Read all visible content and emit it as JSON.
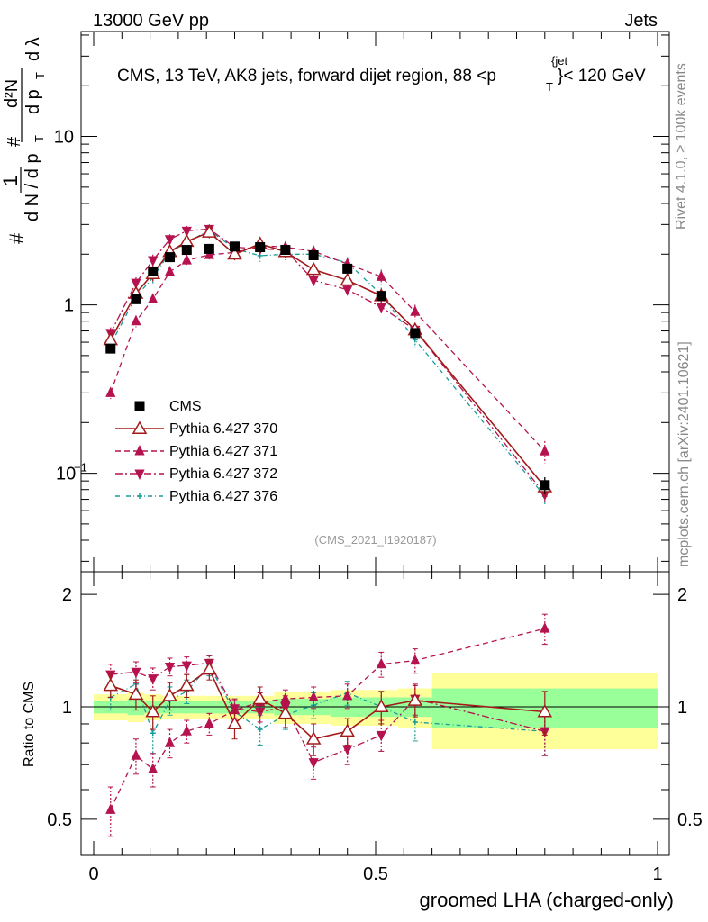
{
  "header": {
    "left": "13000 GeV pp",
    "right": "Jets"
  },
  "side_labels": {
    "rivet": "Rivet 4.1.0, ≥ 100k events",
    "mcplots": "mcplots.cern.ch [arXiv:2401.10621]"
  },
  "chart_data": {
    "type": "line",
    "title_parts": {
      "a": "CMS, 13 TeV, AK8 jets, forward dijet region, 88 <p",
      "sup": "{jet",
      "sub": "T",
      "b": "}< 120 GeV"
    },
    "watermark": "(CMS_2021_I1920187)",
    "xlabel": "groomed LHA (charged-only)",
    "ylabel": {
      "hash1": "#",
      "one": "1",
      "dN": "d N / d p",
      "T1": "T",
      "hash2": "#",
      "d2N": "d²N",
      "dpT": "d p",
      "T2": "T",
      "dlam": "d λ"
    },
    "ratio_ylabel": "Ratio to CMS",
    "xlim": [
      0,
      1
    ],
    "ylim": [
      0.026,
      42
    ],
    "ratio_ylim": [
      0.4,
      2.3
    ],
    "x_ticks": [
      "0",
      "0.5",
      "1"
    ],
    "y_ticks": [
      {
        "value": 10,
        "label": "10"
      },
      {
        "value": 1,
        "label": "1"
      },
      {
        "value": 0.1,
        "label": "10",
        "sup": "−1"
      }
    ],
    "ratio_ticks": [
      {
        "value": 2,
        "label": "2"
      },
      {
        "value": 1,
        "label": "1"
      },
      {
        "value": 0.5,
        "label": "0.5"
      }
    ],
    "bins": [
      [
        0,
        0.06
      ],
      [
        0.06,
        0.09
      ],
      [
        0.09,
        0.12
      ],
      [
        0.12,
        0.15
      ],
      [
        0.15,
        0.18
      ],
      [
        0.18,
        0.23
      ],
      [
        0.23,
        0.27
      ],
      [
        0.27,
        0.32
      ],
      [
        0.32,
        0.36
      ],
      [
        0.36,
        0.42
      ],
      [
        0.42,
        0.48
      ],
      [
        0.48,
        0.54
      ],
      [
        0.54,
        0.6
      ],
      [
        0.6,
        1.0
      ]
    ],
    "x": [
      0.03,
      0.075,
      0.105,
      0.135,
      0.165,
      0.205,
      0.25,
      0.295,
      0.34,
      0.39,
      0.45,
      0.51,
      0.57,
      0.8
    ],
    "cms": {
      "name": "CMS",
      "values": [
        0.55,
        1.08,
        1.58,
        1.92,
        2.12,
        2.15,
        2.22,
        2.2,
        2.12,
        1.97,
        1.64,
        1.13,
        0.68,
        0.085
      ],
      "band_stat": [
        0.04,
        0.05,
        0.04,
        0.04,
        0.04,
        0.04,
        0.04,
        0.04,
        0.05,
        0.05,
        0.06,
        0.06,
        0.06,
        0.12
      ],
      "band_tot": [
        0.08,
        0.09,
        0.08,
        0.07,
        0.07,
        0.07,
        0.07,
        0.07,
        0.1,
        0.1,
        0.11,
        0.11,
        0.12,
        0.23
      ]
    },
    "series": [
      {
        "name": "Pythia 6.427 370",
        "color": "#a31a1a",
        "marker": "open-triangle-up",
        "dash": "",
        "values": [
          0.62,
          1.17,
          1.53,
          2.07,
          2.38,
          2.7,
          2.0,
          2.3,
          2.07,
          1.62,
          1.4,
          1.13,
          0.71,
          0.083
        ],
        "ratio": [
          1.14,
          1.08,
          0.97,
          1.07,
          1.14,
          1.26,
          0.9,
          1.05,
          0.96,
          0.82,
          0.86,
          1.0,
          1.04,
          0.97
        ],
        "rerr": [
          0.08,
          0.1,
          0.1,
          0.09,
          0.08,
          0.08,
          0.08,
          0.08,
          0.08,
          0.08,
          0.07,
          0.1,
          0.1,
          0.13
        ]
      },
      {
        "name": "Pythia 6.427 371",
        "color": "#b5124f",
        "marker": "filled-triangle-up",
        "dash": "6,4",
        "values": [
          0.3,
          0.8,
          1.08,
          1.57,
          1.84,
          1.98,
          2.05,
          2.25,
          2.2,
          2.08,
          1.75,
          1.47,
          0.91,
          0.135
        ],
        "ratio": [
          0.53,
          0.74,
          0.68,
          0.8,
          0.86,
          0.9,
          0.98,
          1.03,
          1.05,
          1.06,
          1.07,
          1.3,
          1.33,
          1.62
        ],
        "rerr": [
          0.08,
          0.08,
          0.07,
          0.07,
          0.06,
          0.06,
          0.06,
          0.06,
          0.06,
          0.07,
          0.08,
          0.1,
          0.1,
          0.15
        ]
      },
      {
        "name": "Pythia 6.427 372",
        "color": "#b5124f",
        "marker": "filled-triangle-down",
        "dash": "8,3,2,3",
        "values": [
          0.68,
          1.35,
          1.84,
          2.45,
          2.75,
          2.82,
          2.2,
          2.15,
          2.12,
          1.4,
          1.23,
          0.97,
          0.71,
          0.075
        ],
        "ratio": [
          1.22,
          1.24,
          1.19,
          1.28,
          1.29,
          1.31,
          0.99,
          0.97,
          1.0,
          0.71,
          0.77,
          0.84,
          1.05,
          0.86
        ],
        "rerr": [
          0.08,
          0.08,
          0.08,
          0.07,
          0.07,
          0.06,
          0.06,
          0.06,
          0.07,
          0.07,
          0.07,
          0.08,
          0.1,
          0.12
        ]
      },
      {
        "name": "Pythia 6.427 376",
        "color": "#1a9c9c",
        "marker": "star",
        "dash": "5,3,1,3",
        "values": [
          0.58,
          1.12,
          1.45,
          2.05,
          2.34,
          2.78,
          2.15,
          1.96,
          2.0,
          2.0,
          1.78,
          1.15,
          0.62,
          0.073
        ],
        "ratio": [
          1.06,
          1.15,
          0.85,
          1.04,
          1.1,
          1.29,
          0.97,
          0.87,
          0.95,
          1.01,
          1.09,
          1.0,
          0.91,
          0.86
        ],
        "rerr": [
          0.08,
          0.1,
          0.1,
          0.09,
          0.08,
          0.08,
          0.08,
          0.08,
          0.08,
          0.08,
          0.08,
          0.1,
          0.1,
          0.12
        ]
      }
    ]
  }
}
